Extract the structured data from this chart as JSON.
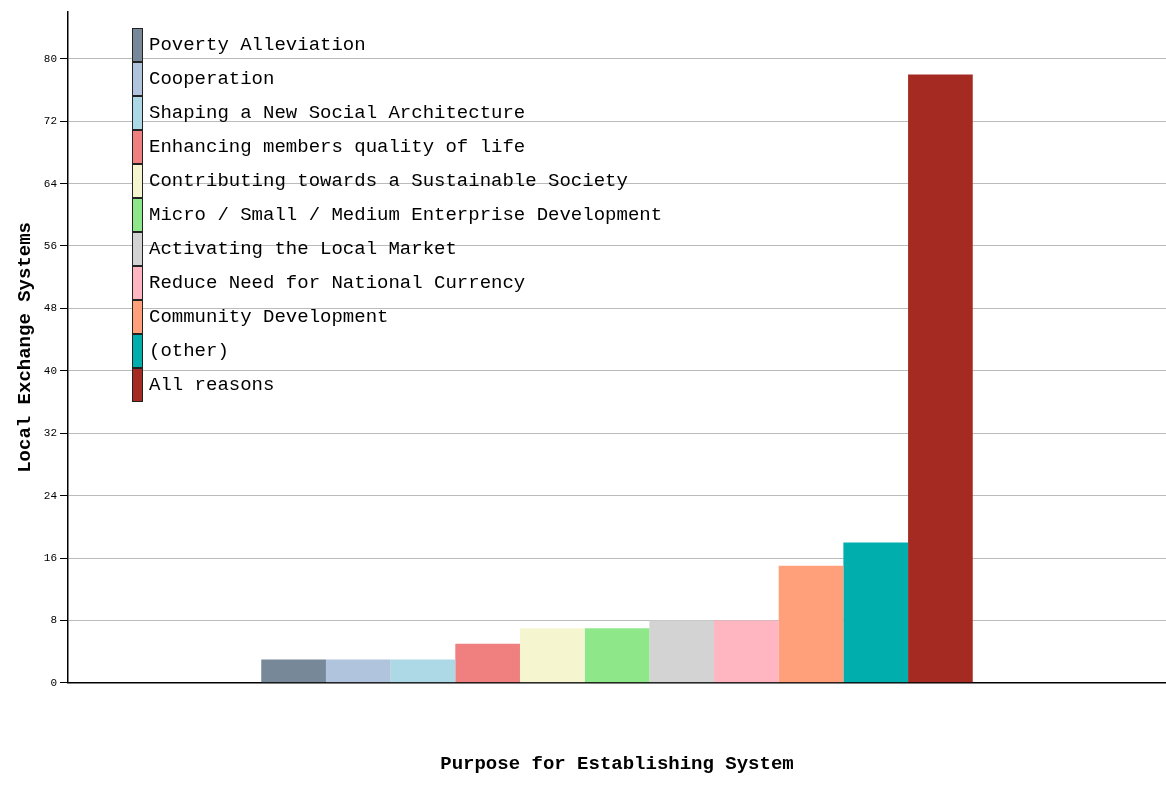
{
  "chart_data": {
    "type": "bar",
    "xlabel": "Purpose for Establishing System",
    "ylabel": "Local Exchange Systems",
    "categories": [
      null
    ],
    "series": [
      {
        "name": "Poverty Alleviation",
        "color": "#778899",
        "values": [
          3
        ]
      },
      {
        "name": "Cooperation",
        "color": "#b0c4de",
        "values": [
          3
        ]
      },
      {
        "name": "Shaping a New Social Architecture",
        "color": "#add8e6",
        "values": [
          3
        ]
      },
      {
        "name": "Enhancing members quality of life",
        "color": "#f08080",
        "values": [
          5
        ]
      },
      {
        "name": "Contributing towards a Sustainable Society",
        "color": "#f5f5d0",
        "values": [
          7
        ]
      },
      {
        "name": "Micro / Small / Medium Enterprise Development",
        "color": "#8ee88a",
        "values": [
          7
        ]
      },
      {
        "name": "Activating the Local Market",
        "color": "#d3d3d3",
        "values": [
          8
        ]
      },
      {
        "name": "Reduce Need for National Currency",
        "color": "#ffb6c1",
        "values": [
          8
        ]
      },
      {
        "name": "Community Development",
        "color": "#ffa07a",
        "values": [
          15
        ]
      },
      {
        "name": "(other)",
        "color": "#00aeae",
        "values": [
          18
        ]
      },
      {
        "name": "All reasons",
        "color": "#a52a22",
        "values": [
          78
        ]
      }
    ],
    "ylim": [
      0,
      86
    ],
    "yticks": [
      0,
      8,
      16,
      24,
      32,
      40,
      48,
      56,
      64,
      72,
      80
    ],
    "grid": "y",
    "legend": "top left"
  }
}
